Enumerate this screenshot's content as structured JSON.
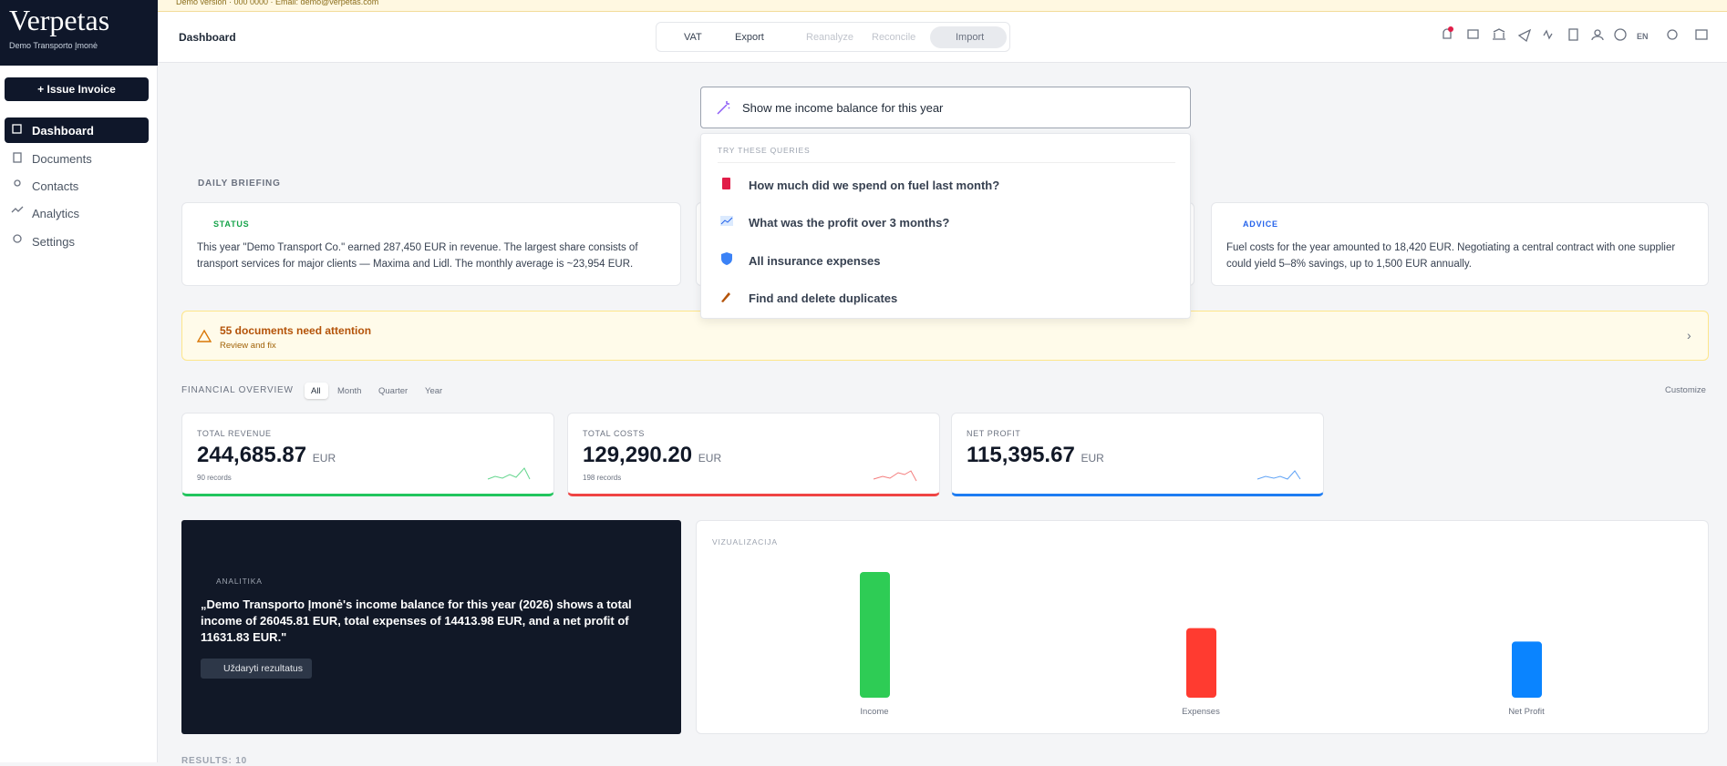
{
  "banner": {
    "text": "Demo version · 000 0000 · Email: demo@verpetas.com"
  },
  "sidebar": {
    "logo": "Verpetas",
    "company": "Demo Transporto Įmonė",
    "issue_button": "+ Issue Invoice",
    "nav": [
      "Dashboard",
      "Documents",
      "Contacts",
      "Analytics",
      "Settings"
    ]
  },
  "header": {
    "title": "Dashboard",
    "toolbar": [
      "VAT",
      "Export",
      "Reanalyze",
      "Reconcile",
      "Import"
    ],
    "language": "EN"
  },
  "search": {
    "query": "Show me income balance for this year",
    "suggestions_title": "TRY THESE QUERIES",
    "suggestions": [
      "How much did we spend on fuel last month?",
      "What was the profit over 3 months?",
      "All insurance expenses",
      "Find and delete duplicates"
    ]
  },
  "briefing": {
    "title": "DAILY BRIEFING",
    "cards": [
      {
        "label": "STATUS",
        "text": "This year \"Demo Transport Co.\" earned 287,450 EUR in revenue. The largest share consists of transport services for major clients — Maxima and Lidl. The monthly average is ~23,954 EUR."
      },
      {
        "label": "ADVICE",
        "text": "Fuel costs for the year amounted to 18,420 EUR. Negotiating a central contract with one supplier could yield 5–8% savings, up to 1,500 EUR annually."
      }
    ]
  },
  "attention": {
    "title": "55 documents need attention",
    "subtitle": "Review and fix"
  },
  "overview": {
    "title": "FINANCIAL OVERVIEW",
    "filters": [
      "All",
      "Month",
      "Quarter",
      "Year"
    ],
    "customize": "Customize",
    "kpis": [
      {
        "label": "TOTAL REVENUE",
        "value": "244,685.87",
        "unit": "EUR",
        "records": "90 records"
      },
      {
        "label": "TOTAL COSTS",
        "value": "129,290.20",
        "unit": "EUR",
        "records": "198 records"
      },
      {
        "label": "NET PROFIT",
        "value": "115,395.67",
        "unit": "EUR"
      }
    ]
  },
  "analytics": {
    "label": "ANALITIKA",
    "text": "„Demo Transporto Įmonė's income balance for this year (2026) shows a total income of 26045.81 EUR, total expenses of 14413.98 EUR, and a net profit of 11631.83 EUR.\"",
    "close": "Uždaryti rezultatus"
  },
  "visualization": {
    "title": "VIZUALIZACIJA",
    "categories": [
      "Income",
      "Expenses",
      "Net Profit"
    ],
    "values": [
      26045.81,
      14413.98,
      11631.83
    ],
    "colors": [
      "#2ecc55",
      "#ff3b30",
      "#0a84ff"
    ]
  },
  "results": {
    "title": "RESULTS: 10"
  }
}
